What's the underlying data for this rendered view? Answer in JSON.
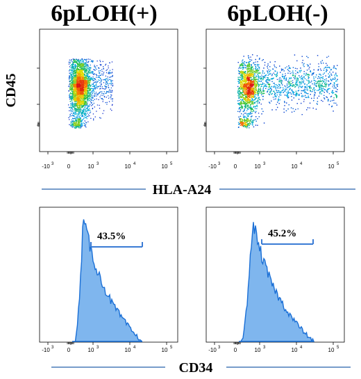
{
  "titles": {
    "left": "6pLOH(+)",
    "right": "6pLOH(-)"
  },
  "colors": {
    "hist_fill": "#7fb6ee",
    "hist_line": "#1a6fd6",
    "gate": "#3a7bd5",
    "rule": "#4a7cb8"
  },
  "chart_data": [
    {
      "type": "scatter",
      "panel": "6pLOH(+) dot plot",
      "title": "6pLOH(+)",
      "xlabel": "HLA-A24",
      "ylabel": "CD45",
      "scale": "biexponential",
      "x_tick_labels": [
        "-10^3",
        "0",
        "10^3",
        "10^4",
        "10^5"
      ],
      "population": {
        "x_center": 200,
        "y_center": "high",
        "density": "dense compact cluster"
      }
    },
    {
      "type": "scatter",
      "panel": "6pLOH(-) dot plot",
      "title": "6pLOH(-)",
      "xlabel": "HLA-A24",
      "ylabel": "CD45",
      "scale": "biexponential",
      "x_tick_labels": [
        "-10^3",
        "0",
        "10^3",
        "10^4",
        "10^5"
      ],
      "population": {
        "x_center": 300,
        "y_center": "high",
        "density": "broad spread toward 10^4"
      }
    },
    {
      "type": "area",
      "panel": "6pLOH(+) histogram",
      "xlabel": "CD34",
      "scale": "biexponential",
      "x_tick_labels": [
        "-10^3",
        "0",
        "10^3",
        "10^4",
        "10^5"
      ],
      "gate_percent": "43.5%",
      "gate_range": [
        500,
        9000
      ]
    },
    {
      "type": "area",
      "panel": "6pLOH(-) histogram",
      "xlabel": "CD34",
      "scale": "biexponential",
      "x_tick_labels": [
        "-10^3",
        "0",
        "10^3",
        "10^4",
        "10^5"
      ],
      "gate_percent": "45.2%",
      "gate_range": [
        600,
        10000
      ]
    }
  ],
  "axis_titles": {
    "y_top": "CD45",
    "x_top": "HLA-A24",
    "x_bottom": "CD34"
  },
  "tick_labels": {
    "neg3": "-10",
    "zero": "0",
    "e3": "10",
    "e4": "10",
    "e5": "10",
    "sup3": "3",
    "sup4": "4",
    "sup5": "5"
  }
}
